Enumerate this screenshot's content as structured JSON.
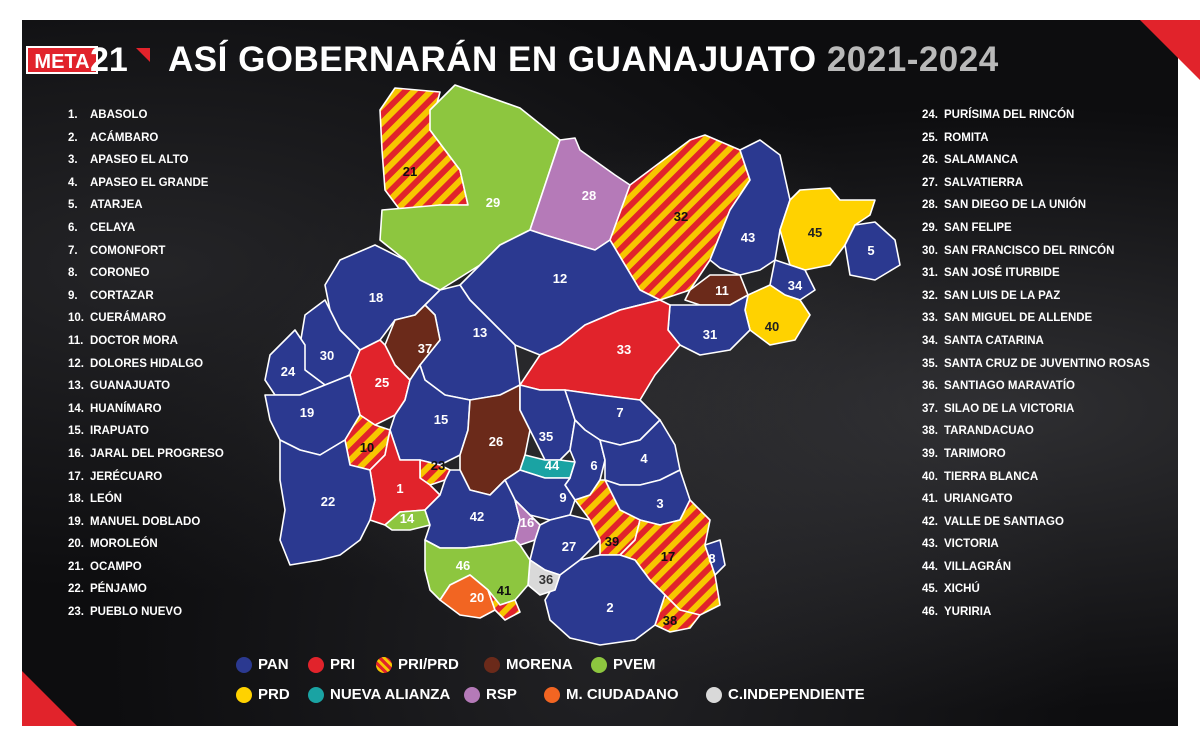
{
  "logo": {
    "text": "META",
    "number": "21"
  },
  "title": {
    "main": "ASÍ GOBERNARÁN EN GUANAJUATO",
    "years": "2021-2024"
  },
  "municipalities_left": [
    {
      "n": "1.",
      "name": "ABASOLO"
    },
    {
      "n": "2.",
      "name": "ACÁMBARO"
    },
    {
      "n": "3.",
      "name": "APASEO EL ALTO"
    },
    {
      "n": "4.",
      "name": "APASEO EL GRANDE"
    },
    {
      "n": "5.",
      "name": "ATARJEA"
    },
    {
      "n": "6.",
      "name": "CELAYA"
    },
    {
      "n": "7.",
      "name": "COMONFORT"
    },
    {
      "n": "8.",
      "name": "CORONEO"
    },
    {
      "n": "9.",
      "name": "CORTAZAR"
    },
    {
      "n": "10.",
      "name": "CUERÁMARO"
    },
    {
      "n": "11.",
      "name": "DOCTOR MORA"
    },
    {
      "n": "12.",
      "name": "DOLORES HIDALGO"
    },
    {
      "n": "13.",
      "name": "GUANAJUATO"
    },
    {
      "n": "14.",
      "name": "HUANÍMARO"
    },
    {
      "n": "15.",
      "name": "IRAPUATO"
    },
    {
      "n": "16.",
      "name": "JARAL DEL PROGRESO"
    },
    {
      "n": "17.",
      "name": "JERÉCUARO"
    },
    {
      "n": "18.",
      "name": "LEÓN"
    },
    {
      "n": "19.",
      "name": "MANUEL DOBLADO"
    },
    {
      "n": "20.",
      "name": "MOROLEÓN"
    },
    {
      "n": "21.",
      "name": "OCAMPO"
    },
    {
      "n": "22.",
      "name": "PÉNJAMO"
    },
    {
      "n": "23.",
      "name": "PUEBLO NUEVO"
    }
  ],
  "municipalities_right": [
    {
      "n": "24.",
      "name": "PURÍSIMA DEL RINCÓN"
    },
    {
      "n": "25.",
      "name": "ROMITA"
    },
    {
      "n": "26.",
      "name": "SALAMANCA"
    },
    {
      "n": "27.",
      "name": "SALVATIERRA"
    },
    {
      "n": "28.",
      "name": "SAN DIEGO DE LA UNIÓN"
    },
    {
      "n": "29.",
      "name": "SAN FELIPE"
    },
    {
      "n": "30.",
      "name": "SAN FRANCISCO DEL RINCÓN"
    },
    {
      "n": "31.",
      "name": "SAN JOSÉ ITURBIDE"
    },
    {
      "n": "32.",
      "name": "SAN LUIS DE LA PAZ"
    },
    {
      "n": "33.",
      "name": "SAN MIGUEL DE ALLENDE"
    },
    {
      "n": "34.",
      "name": "SANTA CATARINA"
    },
    {
      "n": "35.",
      "name": "SANTA CRUZ DE JUVENTINO ROSAS"
    },
    {
      "n": "36.",
      "name": "SANTIAGO MARAVATÍO"
    },
    {
      "n": "37.",
      "name": "SILAO DE LA VICTORIA"
    },
    {
      "n": "38.",
      "name": "TARANDACUAO"
    },
    {
      "n": "39.",
      "name": "TARIMORO"
    },
    {
      "n": "40.",
      "name": "TIERRA BLANCA"
    },
    {
      "n": "41.",
      "name": "URIANGATO"
    },
    {
      "n": "42.",
      "name": "VALLE DE SANTIAGO"
    },
    {
      "n": "43.",
      "name": "VICTORIA"
    },
    {
      "n": "44.",
      "name": "VILLAGRÁN"
    },
    {
      "n": "45.",
      "name": "XICHÚ"
    },
    {
      "n": "46.",
      "name": "YURIRIA"
    }
  ],
  "map_labels": [
    "1",
    "2",
    "3",
    "4",
    "5",
    "6",
    "7",
    "8",
    "9",
    "10",
    "11",
    "12",
    "13",
    "14",
    "15",
    "16",
    "17",
    "18",
    "19",
    "20",
    "21",
    "22",
    "23",
    "24",
    "25",
    "26",
    "27",
    "28",
    "29",
    "30",
    "31",
    "32",
    "33",
    "34",
    "35",
    "36",
    "37",
    "38",
    "39",
    "40",
    "41",
    "42",
    "43",
    "44",
    "45",
    "46"
  ],
  "legend": [
    {
      "key": "pan",
      "label": "PAN",
      "color": "#2b3990"
    },
    {
      "key": "pri",
      "label": "PRI",
      "color": "#e1232b"
    },
    {
      "key": "prp",
      "label": "PRI/PRD",
      "color": "#f7c600"
    },
    {
      "key": "mor",
      "label": "MORENA",
      "color": "#6b2a1a"
    },
    {
      "key": "pve",
      "label": "PVEM",
      "color": "#8dc63f"
    },
    {
      "key": "prd",
      "label": "PRD",
      "color": "#ffd200"
    },
    {
      "key": "na",
      "label": "NUEVA ALIANZA",
      "color": "#1aa3a3"
    },
    {
      "key": "rsp",
      "label": "RSP",
      "color": "#b57ab8"
    },
    {
      "key": "mc",
      "label": "M. CIUDADANO",
      "color": "#f26522"
    },
    {
      "key": "ind",
      "label": "C.INDEPENDIENTE",
      "color": "#d9d9d9"
    }
  ],
  "party_colors": {
    "PAN": "#2b3990",
    "PRI": "#e1232b",
    "PRI/PRD": "stripes",
    "MORENA": "#6b2a1a",
    "PVEM": "#8dc63f",
    "PRD": "#ffd200",
    "NUEVA ALIANZA": "#1aa3a3",
    "RSP": "#b57ab8",
    "M. CIUDADANO": "#f26522",
    "C.INDEPENDIENTE": "#d9d9d9"
  }
}
